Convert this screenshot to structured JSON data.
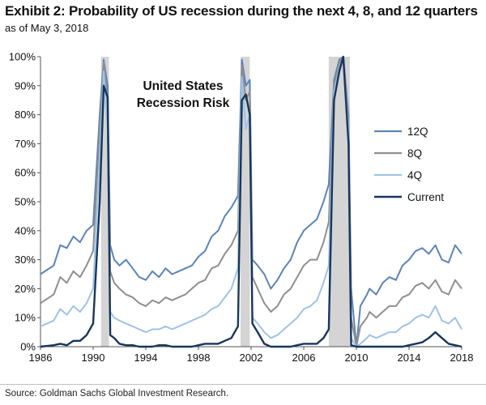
{
  "header": {
    "title": "Exhibit 2: Probability of US recession during the next 4, 8, and 12 quarters",
    "subtitle": "as of May 3, 2018"
  },
  "footer": {
    "source": "Source: Goldman Sachs Global Investment Research."
  },
  "chart_data": {
    "type": "line",
    "annotation": [
      "United States",
      "Recession Risk"
    ],
    "xlim": [
      1986,
      2018
    ],
    "ylim": [
      0,
      100
    ],
    "x_ticks": [
      1986,
      1990,
      1994,
      1998,
      2002,
      2006,
      2010,
      2014,
      2018
    ],
    "y_ticks": [
      0,
      10,
      20,
      30,
      40,
      50,
      60,
      70,
      80,
      90,
      100
    ],
    "y_tick_labels": [
      "0%",
      "10%",
      "20%",
      "30%",
      "40%",
      "50%",
      "60%",
      "70%",
      "80%",
      "90%",
      "100%"
    ],
    "grid": false,
    "legend_position": "right",
    "recessions": [
      [
        1990.6,
        1991.2
      ],
      [
        2001.2,
        2001.9
      ],
      [
        2007.9,
        2009.5
      ]
    ],
    "series": [
      {
        "name": "12Q",
        "color": "#5b84b8",
        "points": [
          [
            1986,
            25
          ],
          [
            1987,
            28
          ],
          [
            1987.5,
            35
          ],
          [
            1988,
            34
          ],
          [
            1988.5,
            38
          ],
          [
            1989,
            36
          ],
          [
            1989.5,
            40
          ],
          [
            1990,
            42
          ],
          [
            1990.5,
            80
          ],
          [
            1990.8,
            99
          ],
          [
            1991.1,
            90
          ],
          [
            1991.3,
            35
          ],
          [
            1991.6,
            30
          ],
          [
            1992,
            28
          ],
          [
            1992.5,
            30
          ],
          [
            1993,
            27
          ],
          [
            1993.5,
            24
          ],
          [
            1994,
            23
          ],
          [
            1994.5,
            26
          ],
          [
            1995,
            24
          ],
          [
            1995.5,
            27
          ],
          [
            1996,
            25
          ],
          [
            1996.5,
            26
          ],
          [
            1997,
            27
          ],
          [
            1997.5,
            28
          ],
          [
            1998,
            31
          ],
          [
            1998.5,
            33
          ],
          [
            1999,
            38
          ],
          [
            1999.5,
            40
          ],
          [
            2000,
            45
          ],
          [
            2000.5,
            48
          ],
          [
            2001,
            52
          ],
          [
            2001.3,
            99
          ],
          [
            2001.6,
            90
          ],
          [
            2001.9,
            92
          ],
          [
            2002.1,
            30
          ],
          [
            2002.5,
            28
          ],
          [
            2003,
            25
          ],
          [
            2003.5,
            20
          ],
          [
            2004,
            23
          ],
          [
            2004.5,
            27
          ],
          [
            2005,
            30
          ],
          [
            2005.5,
            36
          ],
          [
            2006,
            40
          ],
          [
            2006.5,
            42
          ],
          [
            2007,
            44
          ],
          [
            2007.5,
            50
          ],
          [
            2007.9,
            56
          ],
          [
            2008.3,
            92
          ],
          [
            2008.7,
            99
          ],
          [
            2009,
            100
          ],
          [
            2009.4,
            80
          ],
          [
            2009.6,
            20
          ],
          [
            2010,
            0
          ],
          [
            2010.3,
            14
          ],
          [
            2010.8,
            18
          ],
          [
            2011,
            20
          ],
          [
            2011.5,
            18
          ],
          [
            2012,
            22
          ],
          [
            2012.5,
            24
          ],
          [
            2013,
            23
          ],
          [
            2013.5,
            28
          ],
          [
            2014,
            30
          ],
          [
            2014.5,
            33
          ],
          [
            2015,
            34
          ],
          [
            2015.5,
            32
          ],
          [
            2016,
            35
          ],
          [
            2016.5,
            30
          ],
          [
            2017,
            29
          ],
          [
            2017.5,
            35
          ],
          [
            2018,
            32
          ]
        ]
      },
      {
        "name": "8Q",
        "color": "#8f8f8f",
        "points": [
          [
            1986,
            15
          ],
          [
            1987,
            18
          ],
          [
            1987.5,
            24
          ],
          [
            1988,
            22
          ],
          [
            1988.5,
            26
          ],
          [
            1989,
            24
          ],
          [
            1989.5,
            28
          ],
          [
            1990,
            33
          ],
          [
            1990.5,
            75
          ],
          [
            1990.8,
            98
          ],
          [
            1991.1,
            85
          ],
          [
            1991.3,
            26
          ],
          [
            1991.6,
            22
          ],
          [
            1992,
            20
          ],
          [
            1992.5,
            18
          ],
          [
            1993,
            17
          ],
          [
            1993.5,
            15
          ],
          [
            1994,
            14
          ],
          [
            1994.5,
            16
          ],
          [
            1995,
            15
          ],
          [
            1995.5,
            17
          ],
          [
            1996,
            16
          ],
          [
            1996.5,
            17
          ],
          [
            1997,
            18
          ],
          [
            1997.5,
            20
          ],
          [
            1998,
            22
          ],
          [
            1998.5,
            23
          ],
          [
            1999,
            27
          ],
          [
            1999.5,
            28
          ],
          [
            2000,
            32
          ],
          [
            2000.5,
            35
          ],
          [
            2001,
            40
          ],
          [
            2001.3,
            97
          ],
          [
            2001.6,
            85
          ],
          [
            2001.9,
            88
          ],
          [
            2002.1,
            24
          ],
          [
            2002.5,
            20
          ],
          [
            2003,
            15
          ],
          [
            2003.5,
            12
          ],
          [
            2004,
            14
          ],
          [
            2004.5,
            18
          ],
          [
            2005,
            20
          ],
          [
            2005.5,
            24
          ],
          [
            2006,
            28
          ],
          [
            2006.5,
            30
          ],
          [
            2007,
            30
          ],
          [
            2007.5,
            36
          ],
          [
            2007.9,
            43
          ],
          [
            2008.3,
            90
          ],
          [
            2008.7,
            98
          ],
          [
            2009,
            100
          ],
          [
            2009.4,
            78
          ],
          [
            2009.6,
            10
          ],
          [
            2010,
            0
          ],
          [
            2010.3,
            7
          ],
          [
            2010.8,
            10
          ],
          [
            2011,
            12
          ],
          [
            2011.5,
            10
          ],
          [
            2012,
            12
          ],
          [
            2012.5,
            14
          ],
          [
            2013,
            14
          ],
          [
            2013.5,
            17
          ],
          [
            2014,
            18
          ],
          [
            2014.5,
            21
          ],
          [
            2015,
            22
          ],
          [
            2015.5,
            20
          ],
          [
            2016,
            23
          ],
          [
            2016.5,
            19
          ],
          [
            2017,
            18
          ],
          [
            2017.5,
            23
          ],
          [
            2018,
            20
          ]
        ]
      },
      {
        "name": "4Q",
        "color": "#9fc3e6",
        "points": [
          [
            1986,
            7
          ],
          [
            1987,
            9
          ],
          [
            1987.5,
            13
          ],
          [
            1988,
            11
          ],
          [
            1988.5,
            14
          ],
          [
            1989,
            12
          ],
          [
            1989.5,
            15
          ],
          [
            1990,
            20
          ],
          [
            1990.5,
            65
          ],
          [
            1990.8,
            95
          ],
          [
            1991.1,
            75
          ],
          [
            1991.3,
            12
          ],
          [
            1991.6,
            10
          ],
          [
            1992,
            9
          ],
          [
            1992.5,
            8
          ],
          [
            1993,
            7
          ],
          [
            1993.5,
            6
          ],
          [
            1994,
            5
          ],
          [
            1994.5,
            6
          ],
          [
            1995,
            6
          ],
          [
            1995.5,
            7
          ],
          [
            1996,
            6
          ],
          [
            1996.5,
            7
          ],
          [
            1997,
            8
          ],
          [
            1997.5,
            9
          ],
          [
            1998,
            10
          ],
          [
            1998.5,
            11
          ],
          [
            1999,
            13
          ],
          [
            1999.5,
            14
          ],
          [
            2000,
            17
          ],
          [
            2000.5,
            20
          ],
          [
            2001,
            27
          ],
          [
            2001.3,
            93
          ],
          [
            2001.6,
            75
          ],
          [
            2001.9,
            80
          ],
          [
            2002.1,
            10
          ],
          [
            2002.5,
            8
          ],
          [
            2003,
            5
          ],
          [
            2003.5,
            3
          ],
          [
            2004,
            4
          ],
          [
            2004.5,
            6
          ],
          [
            2005,
            8
          ],
          [
            2005.5,
            10
          ],
          [
            2006,
            13
          ],
          [
            2006.5,
            14
          ],
          [
            2007,
            16
          ],
          [
            2007.5,
            22
          ],
          [
            2007.9,
            28
          ],
          [
            2008.3,
            88
          ],
          [
            2008.7,
            96
          ],
          [
            2009,
            100
          ],
          [
            2009.4,
            75
          ],
          [
            2009.6,
            3
          ],
          [
            2010,
            0
          ],
          [
            2010.3,
            1
          ],
          [
            2010.8,
            3
          ],
          [
            2011,
            4
          ],
          [
            2011.5,
            3
          ],
          [
            2012,
            4
          ],
          [
            2012.5,
            5
          ],
          [
            2013,
            5
          ],
          [
            2013.5,
            7
          ],
          [
            2014,
            8
          ],
          [
            2014.5,
            10
          ],
          [
            2015,
            11
          ],
          [
            2015.5,
            10
          ],
          [
            2016,
            14
          ],
          [
            2016.5,
            9
          ],
          [
            2017,
            8
          ],
          [
            2017.5,
            10
          ],
          [
            2018,
            6
          ]
        ]
      },
      {
        "name": "Current",
        "color": "#17365d",
        "points": [
          [
            1986,
            0
          ],
          [
            1987,
            0.5
          ],
          [
            1987.5,
            1
          ],
          [
            1988,
            0.5
          ],
          [
            1988.5,
            2
          ],
          [
            1989,
            2
          ],
          [
            1989.5,
            4
          ],
          [
            1990,
            8
          ],
          [
            1990.5,
            50
          ],
          [
            1990.8,
            90
          ],
          [
            1991.1,
            86
          ],
          [
            1991.3,
            4
          ],
          [
            1991.6,
            3
          ],
          [
            1992,
            1
          ],
          [
            1992.5,
            0.5
          ],
          [
            1993,
            0.5
          ],
          [
            1993.5,
            0
          ],
          [
            1994,
            0
          ],
          [
            1994.5,
            0
          ],
          [
            1995,
            0.5
          ],
          [
            1995.5,
            0.5
          ],
          [
            1996,
            0
          ],
          [
            1996.5,
            0
          ],
          [
            1997,
            0
          ],
          [
            1997.5,
            0
          ],
          [
            1998,
            0.5
          ],
          [
            1998.5,
            1
          ],
          [
            1999,
            1
          ],
          [
            1999.5,
            1
          ],
          [
            2000,
            2
          ],
          [
            2000.5,
            3
          ],
          [
            2001,
            7
          ],
          [
            2001.3,
            85
          ],
          [
            2001.6,
            87
          ],
          [
            2001.9,
            80
          ],
          [
            2002.1,
            8
          ],
          [
            2002.5,
            5
          ],
          [
            2003,
            1
          ],
          [
            2003.5,
            0
          ],
          [
            2004,
            0
          ],
          [
            2004.5,
            0
          ],
          [
            2005,
            0
          ],
          [
            2005.5,
            0.5
          ],
          [
            2006,
            1
          ],
          [
            2006.5,
            1
          ],
          [
            2007,
            1
          ],
          [
            2007.5,
            3
          ],
          [
            2007.9,
            6
          ],
          [
            2008.3,
            85
          ],
          [
            2008.7,
            95
          ],
          [
            2009,
            100
          ],
          [
            2009.4,
            70
          ],
          [
            2009.6,
            0.5
          ],
          [
            2010,
            0
          ],
          [
            2010.3,
            0
          ],
          [
            2010.8,
            0
          ],
          [
            2011,
            0
          ],
          [
            2011.5,
            0
          ],
          [
            2012,
            0
          ],
          [
            2012.5,
            0
          ],
          [
            2013,
            0
          ],
          [
            2013.5,
            0
          ],
          [
            2014,
            0.5
          ],
          [
            2014.5,
            1
          ],
          [
            2015,
            1.5
          ],
          [
            2015.5,
            3
          ],
          [
            2016,
            5
          ],
          [
            2016.5,
            3
          ],
          [
            2017,
            1
          ],
          [
            2017.5,
            0.5
          ],
          [
            2018,
            0
          ]
        ]
      }
    ]
  }
}
